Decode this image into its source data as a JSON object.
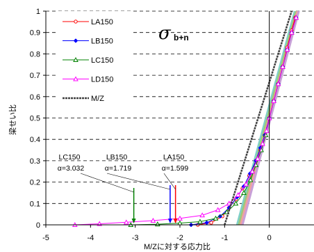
{
  "chart_data": {
    "type": "line",
    "xlabel": "M/Zに対する応力比",
    "ylabel": "梁せい比",
    "xlim": [
      -5,
      1
    ],
    "ylim": [
      0,
      1
    ],
    "xticks": [
      "-5",
      "-4",
      "-3",
      "-2",
      "-1",
      "0"
    ],
    "yticks": [
      "0",
      "0.1",
      "0.2",
      "0.3",
      "0.4",
      "0.5",
      "0.6",
      "0.7",
      "0.8",
      "0.9",
      "1"
    ],
    "grid": "horizontal dashed",
    "legend_position": "top-left",
    "overlay_label": {
      "symbol": "σ",
      "subscript": "b+n"
    },
    "series": [
      {
        "name": "LA150",
        "color": "#ff0000",
        "marker": "circle",
        "points": [
          [
            -1.6,
            0
          ],
          [
            -1.3,
            0.01
          ],
          [
            -1.05,
            0.04
          ],
          [
            -0.9,
            0.08
          ],
          [
            -0.75,
            0.12
          ],
          [
            -0.6,
            0.17
          ],
          [
            -0.45,
            0.23
          ],
          [
            -0.3,
            0.3
          ],
          [
            -0.2,
            0.35
          ],
          [
            -0.1,
            0.42
          ],
          [
            0,
            0.5
          ],
          [
            0.1,
            0.58
          ],
          [
            0.2,
            0.66
          ],
          [
            0.3,
            0.74
          ],
          [
            0.4,
            0.83
          ],
          [
            0.5,
            0.91
          ],
          [
            0.58,
            0.97
          ]
        ]
      },
      {
        "name": "LB150",
        "color": "#0000ff",
        "marker": "diamond",
        "points": [
          [
            -1.75,
            0
          ],
          [
            -1.4,
            0.01
          ],
          [
            -1.1,
            0.04
          ],
          [
            -0.9,
            0.08
          ],
          [
            -0.72,
            0.13
          ],
          [
            -0.57,
            0.18
          ],
          [
            -0.43,
            0.24
          ],
          [
            -0.3,
            0.3
          ],
          [
            -0.2,
            0.36
          ],
          [
            -0.1,
            0.42
          ],
          [
            0,
            0.5
          ],
          [
            0.1,
            0.58
          ],
          [
            0.2,
            0.66
          ],
          [
            0.3,
            0.74
          ],
          [
            0.4,
            0.82
          ],
          [
            0.5,
            0.9
          ],
          [
            0.6,
            0.97
          ]
        ]
      },
      {
        "name": "LC150",
        "color": "#008000",
        "marker": "triangle",
        "points": [
          [
            -3.1,
            0
          ],
          [
            -2.5,
            0.003
          ],
          [
            -2.0,
            0.008
          ],
          [
            -1.55,
            0.015
          ],
          [
            -1.2,
            0.03
          ],
          [
            -0.95,
            0.06
          ],
          [
            -0.75,
            0.1
          ],
          [
            -0.57,
            0.15
          ],
          [
            -0.42,
            0.21
          ],
          [
            -0.3,
            0.28
          ],
          [
            -0.18,
            0.35
          ],
          [
            -0.08,
            0.42
          ],
          [
            0,
            0.5
          ],
          [
            0.1,
            0.58
          ],
          [
            0.2,
            0.66
          ],
          [
            0.3,
            0.74
          ],
          [
            0.4,
            0.82
          ],
          [
            0.5,
            0.9
          ],
          [
            0.6,
            0.97
          ]
        ]
      },
      {
        "name": "LD150",
        "color": "#ff00ff",
        "marker": "triangle",
        "points": [
          [
            -4.35,
            0
          ],
          [
            -3.8,
            0.005
          ],
          [
            -3.2,
            0.012
          ],
          [
            -2.6,
            0.02
          ],
          [
            -2.0,
            0.03
          ],
          [
            -1.5,
            0.045
          ],
          [
            -1.15,
            0.07
          ],
          [
            -0.9,
            0.1
          ],
          [
            -0.7,
            0.14
          ],
          [
            -0.52,
            0.19
          ],
          [
            -0.38,
            0.25
          ],
          [
            -0.26,
            0.31
          ],
          [
            -0.15,
            0.38
          ],
          [
            -0.06,
            0.44
          ],
          [
            0,
            0.5
          ],
          [
            0.1,
            0.58
          ],
          [
            0.2,
            0.66
          ],
          [
            0.3,
            0.74
          ],
          [
            0.4,
            0.82
          ],
          [
            0.5,
            0.9
          ],
          [
            0.6,
            0.97
          ]
        ]
      },
      {
        "name": "M/Z",
        "color": "#404040",
        "marker": "none",
        "dash": "3,1",
        "points": [
          [
            -1.0,
            0
          ],
          [
            0.5,
            1
          ]
        ]
      }
    ],
    "extra_lines": [
      {
        "color": "#7fd0c8",
        "points": [
          [
            -0.72,
            0
          ],
          [
            0.57,
            1
          ]
        ]
      },
      {
        "color": "#a0c878",
        "points": [
          [
            -0.68,
            0
          ],
          [
            0.6,
            1
          ]
        ]
      },
      {
        "color": "#f0a0a0",
        "points": [
          [
            -0.64,
            0
          ],
          [
            0.63,
            1
          ]
        ]
      },
      {
        "color": "#c8a0d8",
        "points": [
          [
            -0.6,
            0
          ],
          [
            0.66,
            1
          ]
        ]
      }
    ],
    "annotations": [
      {
        "id": "lc150",
        "series_label": "LC150",
        "alpha_label": "α=3.032",
        "arrow_x": -3.032,
        "color": "#008000"
      },
      {
        "id": "lb150",
        "series_label": "LB150",
        "alpha_label": "α=1.719",
        "arrow_x": -2.219,
        "color": "#0000ff"
      },
      {
        "id": "la150",
        "series_label": "LA150",
        "alpha_label": "α=1.599",
        "arrow_x": -2.099,
        "color": "#ff0000"
      }
    ]
  }
}
